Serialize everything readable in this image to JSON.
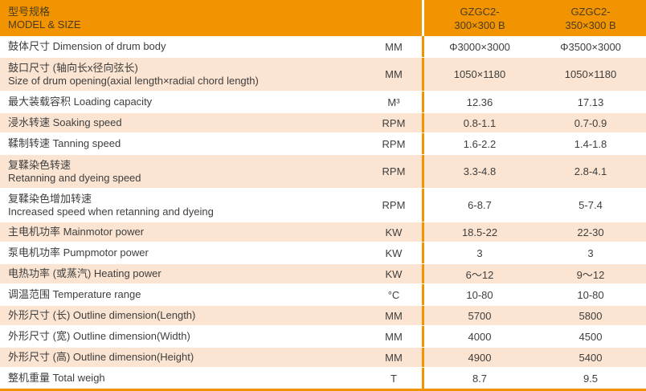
{
  "colors": {
    "accent_orange": "#F29400",
    "row_peach": "#FBE4D1",
    "row_white": "#FFFFFF",
    "header_text": "#4B3C20",
    "body_text": "#3E3E3E"
  },
  "header": {
    "title_zh": "型号规格",
    "title_en": "MODEL & SIZE",
    "columns": [
      {
        "line1": "GZGC2-",
        "line2": "300×300 B"
      },
      {
        "line1": "GZGC2-",
        "line2": "350×300 B"
      }
    ]
  },
  "rows": [
    {
      "line1": "鼓体尺寸 Dimension of drum body",
      "line2": "",
      "unit": "MM",
      "v1": "Φ3000×3000",
      "v2": "Φ3500×3000"
    },
    {
      "line1": "鼓口尺寸 (轴向长x径向弦长)",
      "line2": "Size of drum opening(axial length×radial chord length)",
      "unit": "MM",
      "v1": "1050×1180",
      "v2": "1050×1180"
    },
    {
      "line1": "最大装载容积 Loading capacity",
      "line2": "",
      "unit": "M³",
      "v1": "12.36",
      "v2": "17.13"
    },
    {
      "line1": "浸水转速 Soaking speed",
      "line2": "",
      "unit": "RPM",
      "v1": "0.8-1.1",
      "v2": "0.7-0.9"
    },
    {
      "line1": "鞣制转速 Tanning speed",
      "line2": "",
      "unit": "RPM",
      "v1": "1.6-2.2",
      "v2": "1.4-1.8"
    },
    {
      "line1": "复鞣染色转速",
      "line2": "Retanning and dyeing speed",
      "unit": "RPM",
      "v1": "3.3-4.8",
      "v2": "2.8-4.1"
    },
    {
      "line1": "复鞣染色增加转速",
      "line2": "Increased speed when retanning and dyeing",
      "unit": "RPM",
      "v1": "6-8.7",
      "v2": "5-7.4"
    },
    {
      "line1": "主电机功率 Mainmotor power",
      "line2": "",
      "unit": "KW",
      "v1": "18.5-22",
      "v2": "22-30"
    },
    {
      "line1": "泵电机功率 Pumpmotor power",
      "line2": "",
      "unit": "KW",
      "v1": "3",
      "v2": "3"
    },
    {
      "line1": "电热功率 (或蒸汽) Heating power",
      "line2": "",
      "unit": "KW",
      "v1": "6～12",
      "v2": "9～12"
    },
    {
      "line1": "调温范围 Temperature range",
      "line2": "",
      "unit": "°C",
      "v1": "10-80",
      "v2": "10-80"
    },
    {
      "line1": "外形尺寸 (长) Outline dimension(Length)",
      "line2": "",
      "unit": "MM",
      "v1": "5700",
      "v2": "5800"
    },
    {
      "line1": "外形尺寸 (宽) Outline dimension(Width)",
      "line2": "",
      "unit": "MM",
      "v1": "4000",
      "v2": "4500"
    },
    {
      "line1": "外形尺寸 (高) Outline dimension(Height)",
      "line2": "",
      "unit": "MM",
      "v1": "4900",
      "v2": "5400"
    },
    {
      "line1": "整机重量 Total weigh",
      "line2": "",
      "unit": "T",
      "v1": "8.7",
      "v2": "9.5"
    }
  ]
}
